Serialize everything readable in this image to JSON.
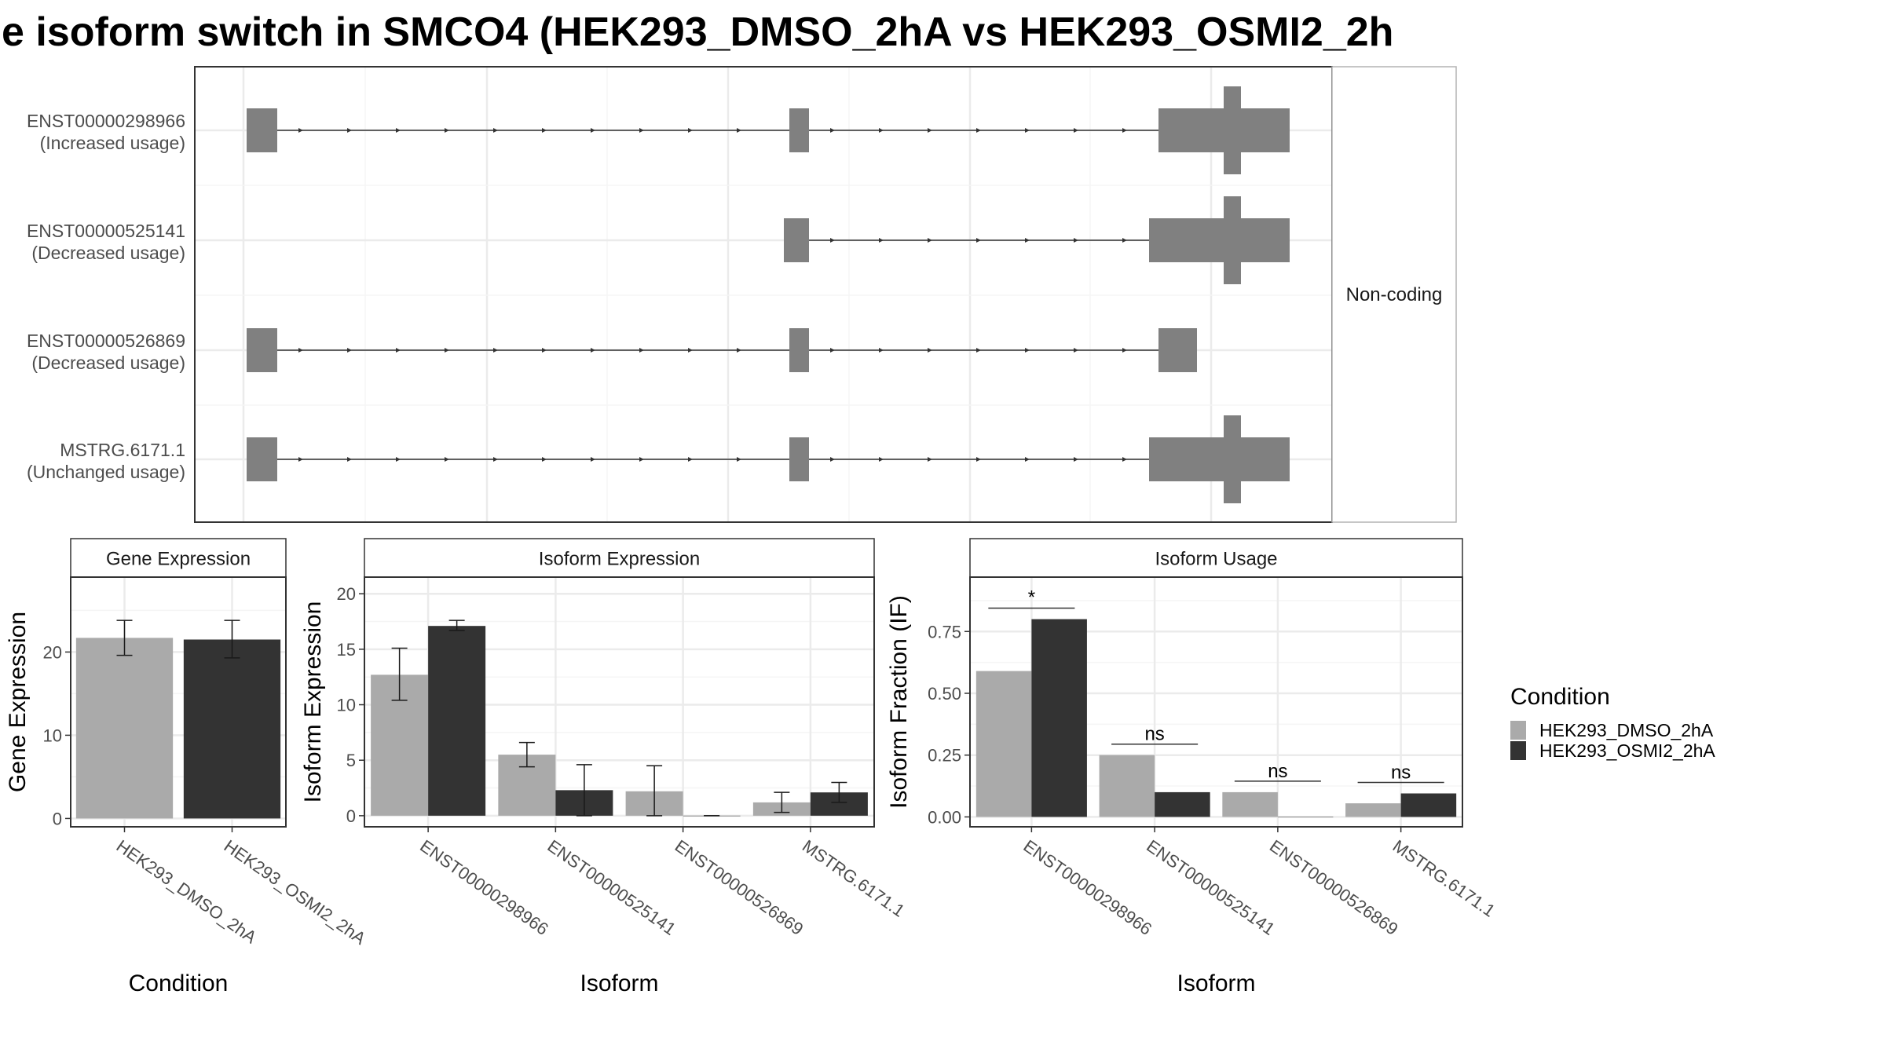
{
  "title": "e isoform switch in SMCO4 (HEK293_DMSO_2hA vs HEK293_OSMI2_2h",
  "structure": {
    "strip_label": "Non-coding",
    "isoforms": [
      {
        "id": "ENST00000298966",
        "usage": "(Increased usage)"
      },
      {
        "id": "ENST00000525141",
        "usage": "(Decreased usage)"
      },
      {
        "id": "ENST00000526869",
        "usage": "(Decreased usage)"
      },
      {
        "id": "MSTRG.6171.1",
        "usage": "(Unchanged usage)"
      }
    ]
  },
  "legend": {
    "title": "Condition",
    "items": [
      {
        "label": "HEK293_DMSO_2hA",
        "color": "#aaaaaa"
      },
      {
        "label": "HEK293_OSMI2_2hA",
        "color": "#333333"
      }
    ]
  },
  "chart_data": [
    {
      "type": "bar",
      "panel": "Gene Expression",
      "xlabel": "Condition",
      "ylabel": "Gene Expression",
      "categories": [
        "HEK293_DMSO_2hA",
        "HEK293_OSMI2_2hA"
      ],
      "values": [
        21.7,
        21.5
      ],
      "error": [
        [
          19.6,
          23.8
        ],
        [
          19.3,
          23.8
        ]
      ],
      "colors": [
        "#aaaaaa",
        "#333333"
      ],
      "ylim": [
        -1,
        29
      ],
      "yticks": [
        0,
        10,
        20
      ]
    },
    {
      "type": "bar",
      "panel": "Isoform Expression",
      "xlabel": "Isoform",
      "ylabel": "Isoform Expression",
      "categories": [
        "ENST00000298966",
        "ENST00000525141",
        "ENST00000526869",
        "MSTRG.6171.1"
      ],
      "series": [
        {
          "color": "#aaaaaa",
          "values": [
            12.7,
            5.5,
            2.2,
            1.2
          ],
          "error": [
            [
              10.4,
              15.1
            ],
            [
              4.4,
              6.6
            ],
            [
              0.0,
              4.5
            ],
            [
              0.3,
              2.1
            ]
          ]
        },
        {
          "color": "#333333",
          "values": [
            17.1,
            2.3,
            0.0,
            2.1
          ],
          "error": [
            [
              16.7,
              17.6
            ],
            [
              0.0,
              4.6
            ],
            [
              0.0,
              0.0
            ],
            [
              1.2,
              3.0
            ]
          ]
        }
      ],
      "ylim": [
        -1,
        21.5
      ],
      "yticks": [
        0,
        5,
        10,
        15,
        20
      ]
    },
    {
      "type": "bar",
      "panel": "Isoform Usage",
      "xlabel": "Isoform",
      "ylabel": "Isoform Fraction (IF)",
      "categories": [
        "ENST00000298966",
        "ENST00000525141",
        "ENST00000526869",
        "MSTRG.6171.1"
      ],
      "series": [
        {
          "color": "#aaaaaa",
          "values": [
            0.59,
            0.25,
            0.1,
            0.055
          ]
        },
        {
          "color": "#333333",
          "values": [
            0.8,
            0.1,
            0.0,
            0.095
          ]
        }
      ],
      "significance": [
        "*",
        "ns",
        "ns",
        "ns"
      ],
      "ylim": [
        -0.04,
        0.97
      ],
      "yticks": [
        0.0,
        0.25,
        0.5,
        0.75
      ],
      "ytick_labels": [
        "0.00",
        "0.25",
        "0.50",
        "0.75"
      ]
    }
  ]
}
